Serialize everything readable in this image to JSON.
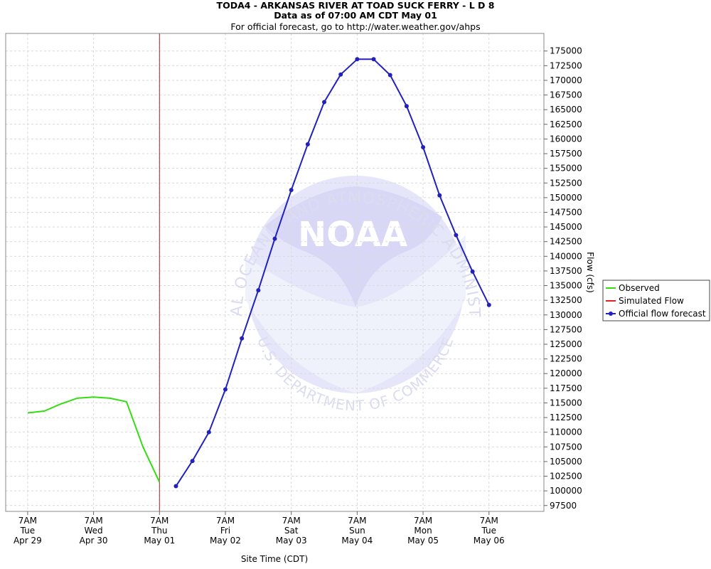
{
  "chart_data": {
    "type": "line",
    "title": "TODA4 - ARKANSAS RIVER AT TOAD SUCK FERRY - L D 8",
    "subtitle_lines": [
      "Data as of 07:00 AM CDT May 01",
      "For official forecast, go to http://water.weather.gov/ahps"
    ],
    "xlabel": "Site Time (CDT)",
    "ylabel": "Flow (cfs)",
    "ylim": [
      96500,
      178000
    ],
    "yticks": [
      97500,
      100000,
      102500,
      105000,
      107500,
      110000,
      112500,
      115000,
      117500,
      120000,
      122500,
      125000,
      127500,
      130000,
      132500,
      135000,
      137500,
      140000,
      142500,
      145000,
      147500,
      150000,
      152500,
      155000,
      157500,
      160000,
      162500,
      165000,
      167500,
      170000,
      172500,
      175000
    ],
    "xlim_hours": [
      -8,
      188
    ],
    "xticks": [
      {
        "hour": 0,
        "lines": [
          "7AM",
          "Tue",
          "Apr 29"
        ]
      },
      {
        "hour": 24,
        "lines": [
          "7AM",
          "Wed",
          "Apr 30"
        ]
      },
      {
        "hour": 48,
        "lines": [
          "7AM",
          "Thu",
          "May 01"
        ]
      },
      {
        "hour": 72,
        "lines": [
          "7AM",
          "Fri",
          "May 02"
        ]
      },
      {
        "hour": 96,
        "lines": [
          "7AM",
          "Sat",
          "May 03"
        ]
      },
      {
        "hour": 120,
        "lines": [
          "7AM",
          "Sun",
          "May 04"
        ]
      },
      {
        "hour": 144,
        "lines": [
          "7AM",
          "Mon",
          "May 05"
        ]
      },
      {
        "hour": 168,
        "lines": [
          "7AM",
          "Tue",
          "May 06"
        ]
      }
    ],
    "current_time_hour": 48,
    "grid": true,
    "legend_position": "right",
    "series": [
      {
        "name": "Observed",
        "color": "#33dd11",
        "markers": false,
        "points": [
          [
            0,
            113300
          ],
          [
            6,
            113600
          ],
          [
            12,
            114800
          ],
          [
            18,
            115800
          ],
          [
            24,
            116000
          ],
          [
            30,
            115800
          ],
          [
            36,
            115200
          ],
          [
            42,
            107500
          ],
          [
            48,
            101500
          ]
        ]
      },
      {
        "name": "Simulated Flow",
        "color": "#dd2222",
        "markers": false,
        "points": []
      },
      {
        "name": "Official flow forecast",
        "color": "#2222bb",
        "markers": true,
        "points": [
          [
            54,
            100800
          ],
          [
            60,
            105100
          ],
          [
            66,
            110000
          ],
          [
            72,
            117300
          ],
          [
            78,
            126000
          ],
          [
            84,
            134200
          ],
          [
            90,
            143000
          ],
          [
            96,
            151300
          ],
          [
            102,
            159100
          ],
          [
            108,
            166300
          ],
          [
            114,
            171000
          ],
          [
            120,
            173600
          ],
          [
            126,
            173600
          ],
          [
            132,
            170900
          ],
          [
            138,
            165600
          ],
          [
            144,
            158600
          ],
          [
            150,
            150400
          ],
          [
            156,
            143600
          ],
          [
            162,
            137400
          ],
          [
            168,
            131700
          ]
        ]
      }
    ]
  },
  "watermark": {
    "logo_text": "NOAA",
    "ring_top": "NATIONAL OCEANIC AND ATMOSPHERIC ADMINISTRATION",
    "ring_bottom": "U.S. DEPARTMENT OF COMMERCE"
  }
}
